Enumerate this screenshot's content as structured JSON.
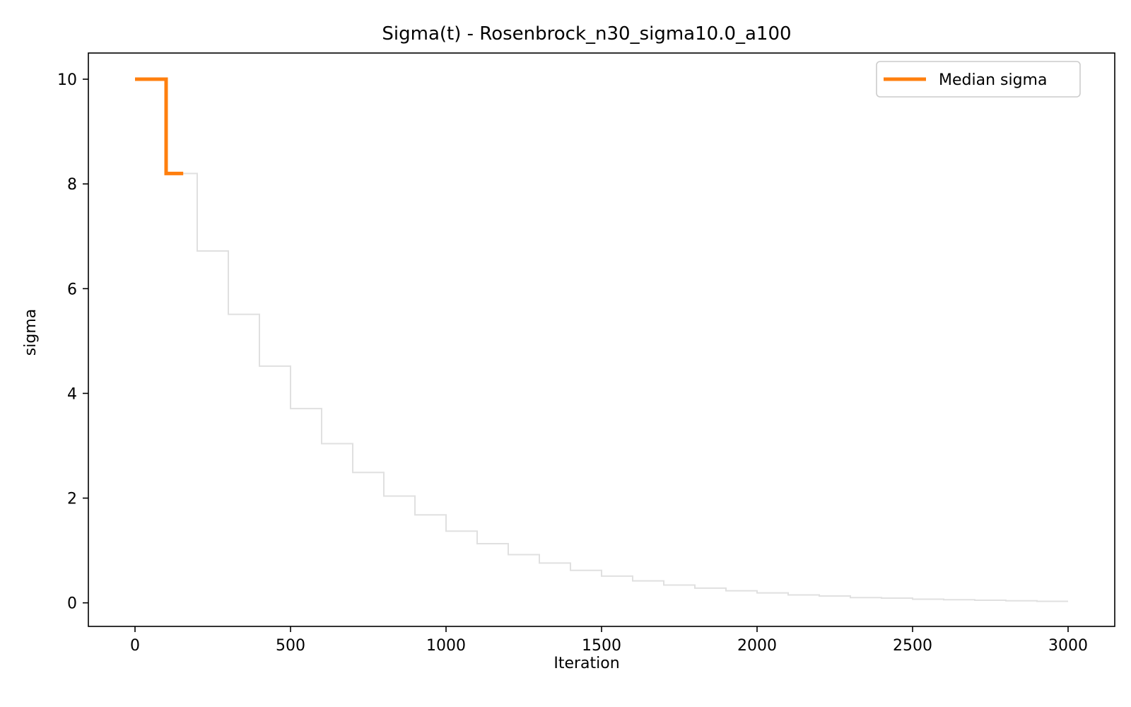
{
  "chart_data": {
    "type": "line",
    "title": "Sigma(t) - Rosenbrock_n30_sigma10.0_a100",
    "xlabel": "Iteration",
    "ylabel": "sigma",
    "xlim": [
      -150,
      3150
    ],
    "ylim": [
      -0.45,
      10.5
    ],
    "xticks": [
      0,
      500,
      1000,
      1500,
      2000,
      2500,
      3000
    ],
    "yticks": [
      0,
      2,
      4,
      6,
      8,
      10
    ],
    "legend_position": "top-right",
    "grid": false,
    "series": [
      {
        "name": "",
        "color": "#e0e0e0",
        "step": "post",
        "x": [
          0,
          100,
          200,
          300,
          400,
          500,
          600,
          700,
          800,
          900,
          1000,
          1100,
          1200,
          1300,
          1400,
          1500,
          1600,
          1700,
          1800,
          1900,
          2000,
          2100,
          2200,
          2300,
          2400,
          2500,
          2600,
          2700,
          2800,
          2900,
          3000
        ],
        "y": [
          10.0,
          8.2,
          6.72,
          5.51,
          4.52,
          3.71,
          3.04,
          2.49,
          2.04,
          1.68,
          1.37,
          1.13,
          0.92,
          0.76,
          0.62,
          0.51,
          0.42,
          0.34,
          0.28,
          0.23,
          0.19,
          0.15,
          0.13,
          0.1,
          0.09,
          0.07,
          0.06,
          0.05,
          0.04,
          0.03,
          0.03
        ]
      },
      {
        "name": "Median sigma",
        "color": "#ff7f0e",
        "step": "post",
        "x": [
          0,
          100,
          155
        ],
        "y": [
          10.0,
          8.2,
          8.2
        ]
      }
    ]
  }
}
